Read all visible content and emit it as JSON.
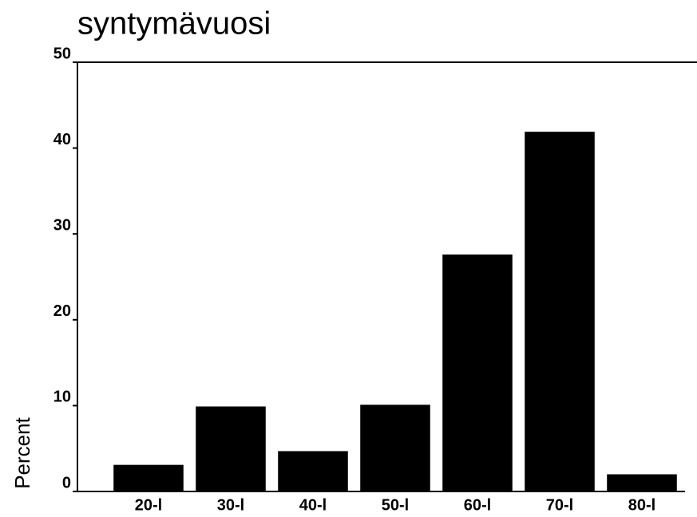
{
  "chart_data": {
    "type": "bar",
    "title": "syntymävuosi",
    "y_label": "Percent",
    "categories": [
      "20-l",
      "30-l",
      "40-l",
      "50-l",
      "60-l",
      "70-l",
      "80-l"
    ],
    "values": [
      3.1,
      9.9,
      4.7,
      10.1,
      27.6,
      41.9,
      2.0
    ],
    "color": "#000000",
    "ylim": [
      0,
      50
    ],
    "yticks": [
      0,
      10,
      20,
      30,
      40,
      50
    ],
    "grid": false
  }
}
